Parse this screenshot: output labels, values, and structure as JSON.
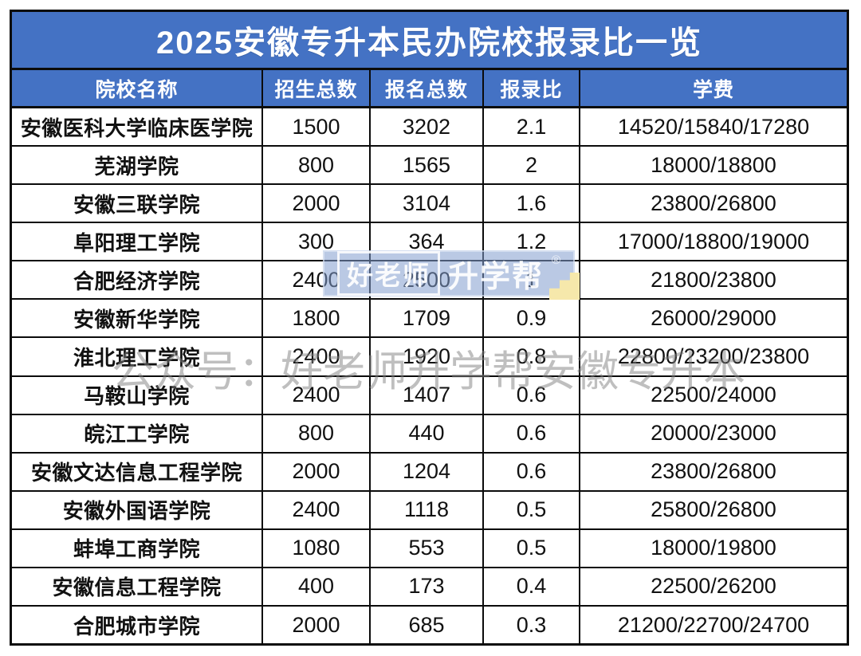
{
  "chart_data": {
    "type": "table",
    "title": "2025安徽专升本民办院校报录比一览",
    "columns": [
      "院校名称",
      "招生总数",
      "报名总数",
      "报录比",
      "学费"
    ],
    "rows": [
      [
        "安徽医科大学临床医学院",
        "1500",
        "3202",
        "2.1",
        "14520/15840/17280"
      ],
      [
        "芜湖学院",
        "800",
        "1565",
        "2",
        "18000/18800"
      ],
      [
        "安徽三联学院",
        "2000",
        "3104",
        "1.6",
        "23800/26800"
      ],
      [
        "阜阳理工学院",
        "300",
        "364",
        "1.2",
        "17000/18800/19000"
      ],
      [
        "合肥经济学院",
        "2400",
        "2500",
        "1",
        "21800/23800"
      ],
      [
        "安徽新华学院",
        "1800",
        "1709",
        "0.9",
        "26000/29000"
      ],
      [
        "淮北理工学院",
        "2400",
        "1920",
        "0.8",
        "22800/23200/23800"
      ],
      [
        "马鞍山学院",
        "2400",
        "1407",
        "0.6",
        "22500/24000"
      ],
      [
        "皖江工学院",
        "800",
        "440",
        "0.6",
        "20000/23000"
      ],
      [
        "安徽文达信息工程学院",
        "2000",
        "1204",
        "0.6",
        "23800/26800"
      ],
      [
        "安徽外国语学院",
        "2400",
        "1118",
        "0.5",
        "25800/26800"
      ],
      [
        "蚌埠工商学院",
        "1080",
        "553",
        "0.5",
        "18000/19800"
      ],
      [
        "安徽信息工程学院",
        "400",
        "173",
        "0.4",
        "22500/26200"
      ],
      [
        "合肥城市学院",
        "2000",
        "685",
        "0.3",
        "21200/22700/24700"
      ]
    ]
  },
  "watermark": {
    "logo_box_text": "好老师",
    "logo_text": "升学帮",
    "logo_reg": "®",
    "diagonal_text": "公众号：好老师升学帮安徽专升本"
  },
  "colors": {
    "header_blue": "#4472C4",
    "border_black": "#0b0b0b",
    "watermark_blue": "rgba(130,156,206,0.55)",
    "watermark_yellow": "#f6e8ab",
    "watermark_gray": "rgba(128,128,128,0.5)"
  }
}
